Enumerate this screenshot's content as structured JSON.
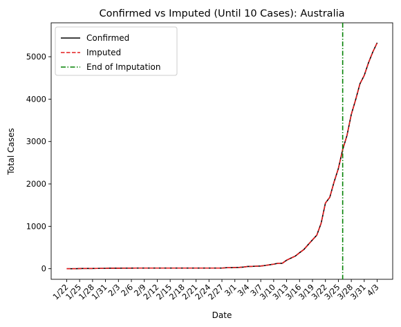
{
  "chart_data": {
    "type": "line",
    "title": "Confirmed vs Imputed (Until 10 Cases): Australia",
    "xlabel": "Date",
    "ylabel": "Total Cases",
    "x_tick_labels": [
      "1/22",
      "1/25",
      "1/28",
      "1/31",
      "2/3",
      "2/6",
      "2/9",
      "2/12",
      "2/15",
      "2/18",
      "2/21",
      "2/24",
      "2/27",
      "3/1",
      "3/4",
      "3/7",
      "3/10",
      "3/13",
      "3/16",
      "3/19",
      "3/22",
      "3/25",
      "3/28",
      "3/31",
      "4/3"
    ],
    "y_ticks": [
      0,
      1000,
      2000,
      3000,
      4000,
      5000
    ],
    "ylim": [
      -250,
      5800
    ],
    "legend_position": "upper-left",
    "colors": {
      "confirmed": "#000000",
      "imputed": "#e31a1c",
      "end_of_imputation": "#008000"
    },
    "series": [
      {
        "name": "Confirmed",
        "style": "solid",
        "x": [
          "1/22",
          "1/23",
          "1/24",
          "1/25",
          "1/26",
          "1/27",
          "1/28",
          "1/29",
          "1/30",
          "1/31",
          "2/1",
          "2/2",
          "2/3",
          "2/4",
          "2/5",
          "2/6",
          "2/7",
          "2/8",
          "2/9",
          "2/10",
          "2/11",
          "2/12",
          "2/13",
          "2/14",
          "2/15",
          "2/16",
          "2/17",
          "2/18",
          "2/19",
          "2/20",
          "2/21",
          "2/22",
          "2/23",
          "2/24",
          "2/25",
          "2/26",
          "2/27",
          "2/28",
          "2/29",
          "3/1",
          "3/2",
          "3/3",
          "3/4",
          "3/5",
          "3/6",
          "3/7",
          "3/8",
          "3/9",
          "3/10",
          "3/11",
          "3/12",
          "3/13",
          "3/14",
          "3/15",
          "3/16",
          "3/17",
          "3/18",
          "3/19",
          "3/20",
          "3/21",
          "3/22",
          "3/23",
          "3/24",
          "3/25",
          "3/26",
          "3/27",
          "3/28",
          "3/29",
          "3/30",
          "3/31",
          "4/1",
          "4/2",
          "4/3"
        ],
        "values": [
          0,
          0,
          0,
          4,
          5,
          5,
          5,
          7,
          9,
          9,
          12,
          12,
          12,
          13,
          13,
          14,
          15,
          15,
          15,
          15,
          15,
          15,
          15,
          15,
          15,
          15,
          15,
          15,
          15,
          15,
          15,
          15,
          15,
          15,
          15,
          15,
          15,
          23,
          25,
          27,
          30,
          39,
          52,
          55,
          60,
          63,
          76,
          91,
          107,
          128,
          128,
          200,
          250,
          297,
          377,
          452,
          568,
          681,
          791,
          1071,
          1549,
          1682,
          2044,
          2364,
          2810,
          3143,
          3640,
          3984,
          4361,
          4559,
          4862,
          5116,
          5330
        ]
      },
      {
        "name": "Imputed",
        "style": "dashed",
        "x": [
          "1/22",
          "1/23",
          "1/24",
          "1/25",
          "1/26",
          "1/27",
          "1/28",
          "1/29",
          "1/30",
          "1/31",
          "2/1",
          "2/2",
          "2/3",
          "2/4",
          "2/5",
          "2/6",
          "2/7",
          "2/8",
          "2/9",
          "2/10",
          "2/11",
          "2/12",
          "2/13",
          "2/14",
          "2/15",
          "2/16",
          "2/17",
          "2/18",
          "2/19",
          "2/20",
          "2/21",
          "2/22",
          "2/23",
          "2/24",
          "2/25",
          "2/26",
          "2/27",
          "2/28",
          "2/29",
          "3/1",
          "3/2",
          "3/3",
          "3/4",
          "3/5",
          "3/6",
          "3/7",
          "3/8",
          "3/9",
          "3/10",
          "3/11",
          "3/12",
          "3/13",
          "3/14",
          "3/15",
          "3/16",
          "3/17",
          "3/18",
          "3/19",
          "3/20",
          "3/21",
          "3/22",
          "3/23",
          "3/24",
          "3/25",
          "3/26",
          "3/27",
          "3/28",
          "3/29",
          "3/30",
          "3/31",
          "4/1",
          "4/2",
          "4/3"
        ],
        "values": [
          0,
          0,
          0,
          4,
          5,
          5,
          5,
          7,
          9,
          9,
          12,
          12,
          12,
          13,
          13,
          14,
          15,
          15,
          15,
          15,
          15,
          15,
          15,
          15,
          15,
          15,
          15,
          15,
          15,
          15,
          15,
          15,
          15,
          15,
          15,
          15,
          15,
          23,
          25,
          27,
          30,
          39,
          52,
          55,
          60,
          63,
          76,
          91,
          107,
          128,
          128,
          200,
          250,
          297,
          377,
          452,
          568,
          681,
          791,
          1071,
          1549,
          1682,
          2044,
          2364,
          2810,
          3143,
          3640,
          3984,
          4361,
          4559,
          4862,
          5116,
          5330
        ]
      }
    ],
    "vline": {
      "name": "End of Imputation",
      "x": "3/26",
      "style": "dashdot"
    }
  }
}
